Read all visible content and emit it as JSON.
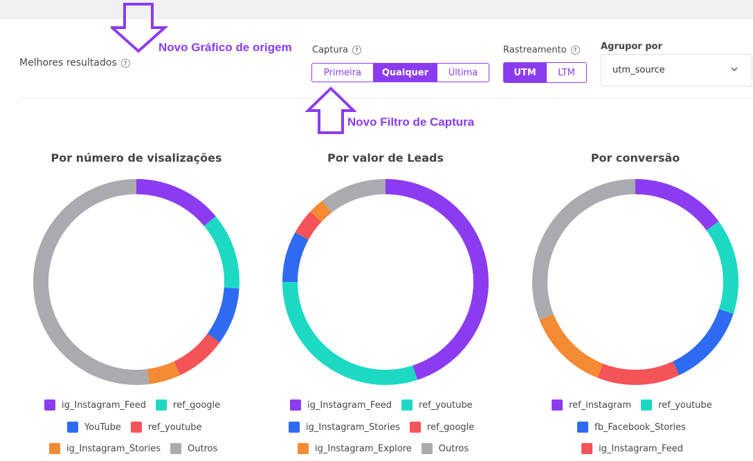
{
  "header": {
    "section_title": "Melhores resultados",
    "captura": {
      "label": "Captura",
      "options": [
        "Primeira",
        "Qualquer",
        "Última"
      ],
      "selected": "Qualquer"
    },
    "rastreamento": {
      "label": "Rastreamento",
      "options": [
        "UTM",
        "LTM"
      ],
      "selected": "UTM"
    },
    "agrupar": {
      "label": "Agrupor por",
      "value": "utm_source"
    }
  },
  "annotations": {
    "grafico": "Novo Gráfico de origem",
    "filtro": "Novo Filtro de Captura"
  },
  "colors": {
    "accent": "#8b3cf0",
    "purple": "#8b3cf0",
    "teal": "#1dd9c4",
    "blue": "#2f6bf2",
    "red": "#f45357",
    "orange": "#f48a33",
    "gray": "#a9abae"
  },
  "chart_data": [
    {
      "type": "pie",
      "title": "Por número de visalizações",
      "series": [
        {
          "name": "ig_Instagram_Feed",
          "value": 14,
          "color": "#8b3cf0"
        },
        {
          "name": "ref_google",
          "value": 12,
          "color": "#1dd9c4"
        },
        {
          "name": "YouTube",
          "value": 9,
          "color": "#2f6bf2"
        },
        {
          "name": "ref_youtube",
          "value": 8,
          "color": "#f45357"
        },
        {
          "name": "ig_Instagram_Stories",
          "value": 5,
          "color": "#f48a33"
        },
        {
          "name": "Outros",
          "value": 52,
          "color": "#a9abae"
        }
      ]
    },
    {
      "type": "pie",
      "title": "Por valor de Leads",
      "series": [
        {
          "name": "ig_Instagram_Feed",
          "value": 45,
          "color": "#8b3cf0"
        },
        {
          "name": "ref_youtube",
          "value": 30,
          "color": "#1dd9c4"
        },
        {
          "name": "ig_Instagram_Stories",
          "value": 8,
          "color": "#2f6bf2"
        },
        {
          "name": "ref_google",
          "value": 4,
          "color": "#f45357"
        },
        {
          "name": "ig_Instagram_Explore",
          "value": 2.5,
          "color": "#f48a33"
        },
        {
          "name": "Outros",
          "value": 10.5,
          "color": "#a9abae"
        }
      ]
    },
    {
      "type": "pie",
      "title": "Por conversão",
      "series": [
        {
          "name": "ref_instagram",
          "value": 15,
          "color": "#8b3cf0"
        },
        {
          "name": "ref_youtube",
          "value": 15,
          "color": "#1dd9c4"
        },
        {
          "name": "fb_Facebook_Stories",
          "value": 13,
          "color": "#2f6bf2"
        },
        {
          "name": "ig_Instagram_Feed",
          "value": 13,
          "color": "#f45357"
        },
        {
          "name": "",
          "value": 13,
          "color": "#f48a33"
        },
        {
          "name": "",
          "value": 31,
          "color": "#a9abae"
        }
      ]
    }
  ]
}
